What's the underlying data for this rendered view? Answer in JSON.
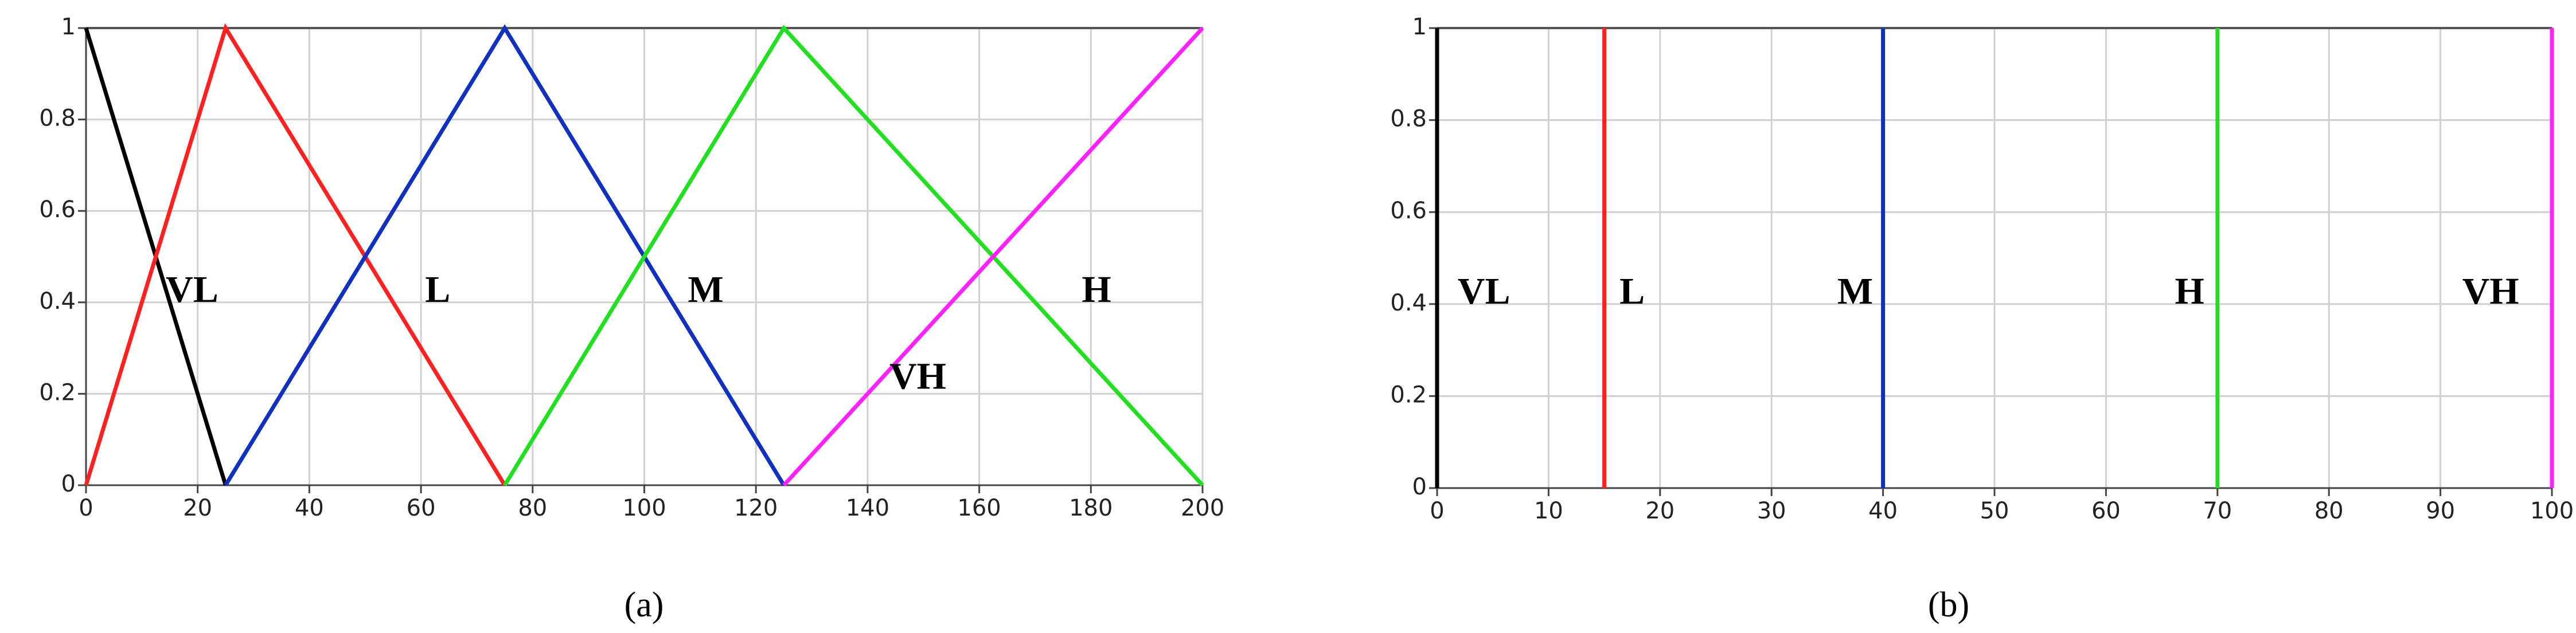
{
  "chart_data": [
    {
      "type": "line",
      "caption": "(a)",
      "series": [
        {
          "name": "VL",
          "color": "#000000",
          "x": [
            0,
            25
          ],
          "values": [
            1,
            0
          ]
        },
        {
          "name": "L",
          "color": "#ff2020",
          "x": [
            0,
            25,
            75
          ],
          "values": [
            0,
            1,
            0
          ]
        },
        {
          "name": "M",
          "color": "#1030c0",
          "x": [
            25,
            75,
            125
          ],
          "values": [
            0,
            1,
            0
          ]
        },
        {
          "name": "H",
          "color": "#20e020",
          "x": [
            75,
            125,
            200
          ],
          "values": [
            0,
            1,
            0
          ]
        },
        {
          "name": "VH",
          "color": "#ff20ff",
          "x": [
            125,
            200
          ],
          "values": [
            0,
            1
          ]
        }
      ],
      "xlim": [
        0,
        200
      ],
      "xticks": [
        0,
        20,
        40,
        60,
        80,
        100,
        120,
        140,
        160,
        180,
        200
      ],
      "ylim": [
        0,
        1
      ],
      "yticks": [
        0,
        0.2,
        0.4,
        0.6,
        0.8,
        1
      ],
      "grid": true
    },
    {
      "type": "line",
      "caption": "(b)",
      "series": [
        {
          "name": "VL",
          "color": "#000000",
          "x": [
            0,
            0
          ],
          "values": [
            0,
            1
          ]
        },
        {
          "name": "L",
          "color": "#ff2020",
          "x": [
            15,
            15
          ],
          "values": [
            0,
            1
          ]
        },
        {
          "name": "M",
          "color": "#1030c0",
          "x": [
            40,
            40
          ],
          "values": [
            0,
            1
          ]
        },
        {
          "name": "H",
          "color": "#20e020",
          "x": [
            70,
            70
          ],
          "values": [
            0,
            1
          ]
        },
        {
          "name": "VH",
          "color": "#ff20ff",
          "x": [
            100,
            100
          ],
          "values": [
            0,
            1
          ]
        }
      ],
      "xlim": [
        0,
        100
      ],
      "xticks": [
        0,
        10,
        20,
        30,
        40,
        50,
        60,
        70,
        80,
        90,
        100
      ],
      "ylim": [
        0,
        1
      ],
      "yticks": [
        0,
        0.2,
        0.4,
        0.6,
        0.8,
        1
      ],
      "grid": true
    }
  ]
}
